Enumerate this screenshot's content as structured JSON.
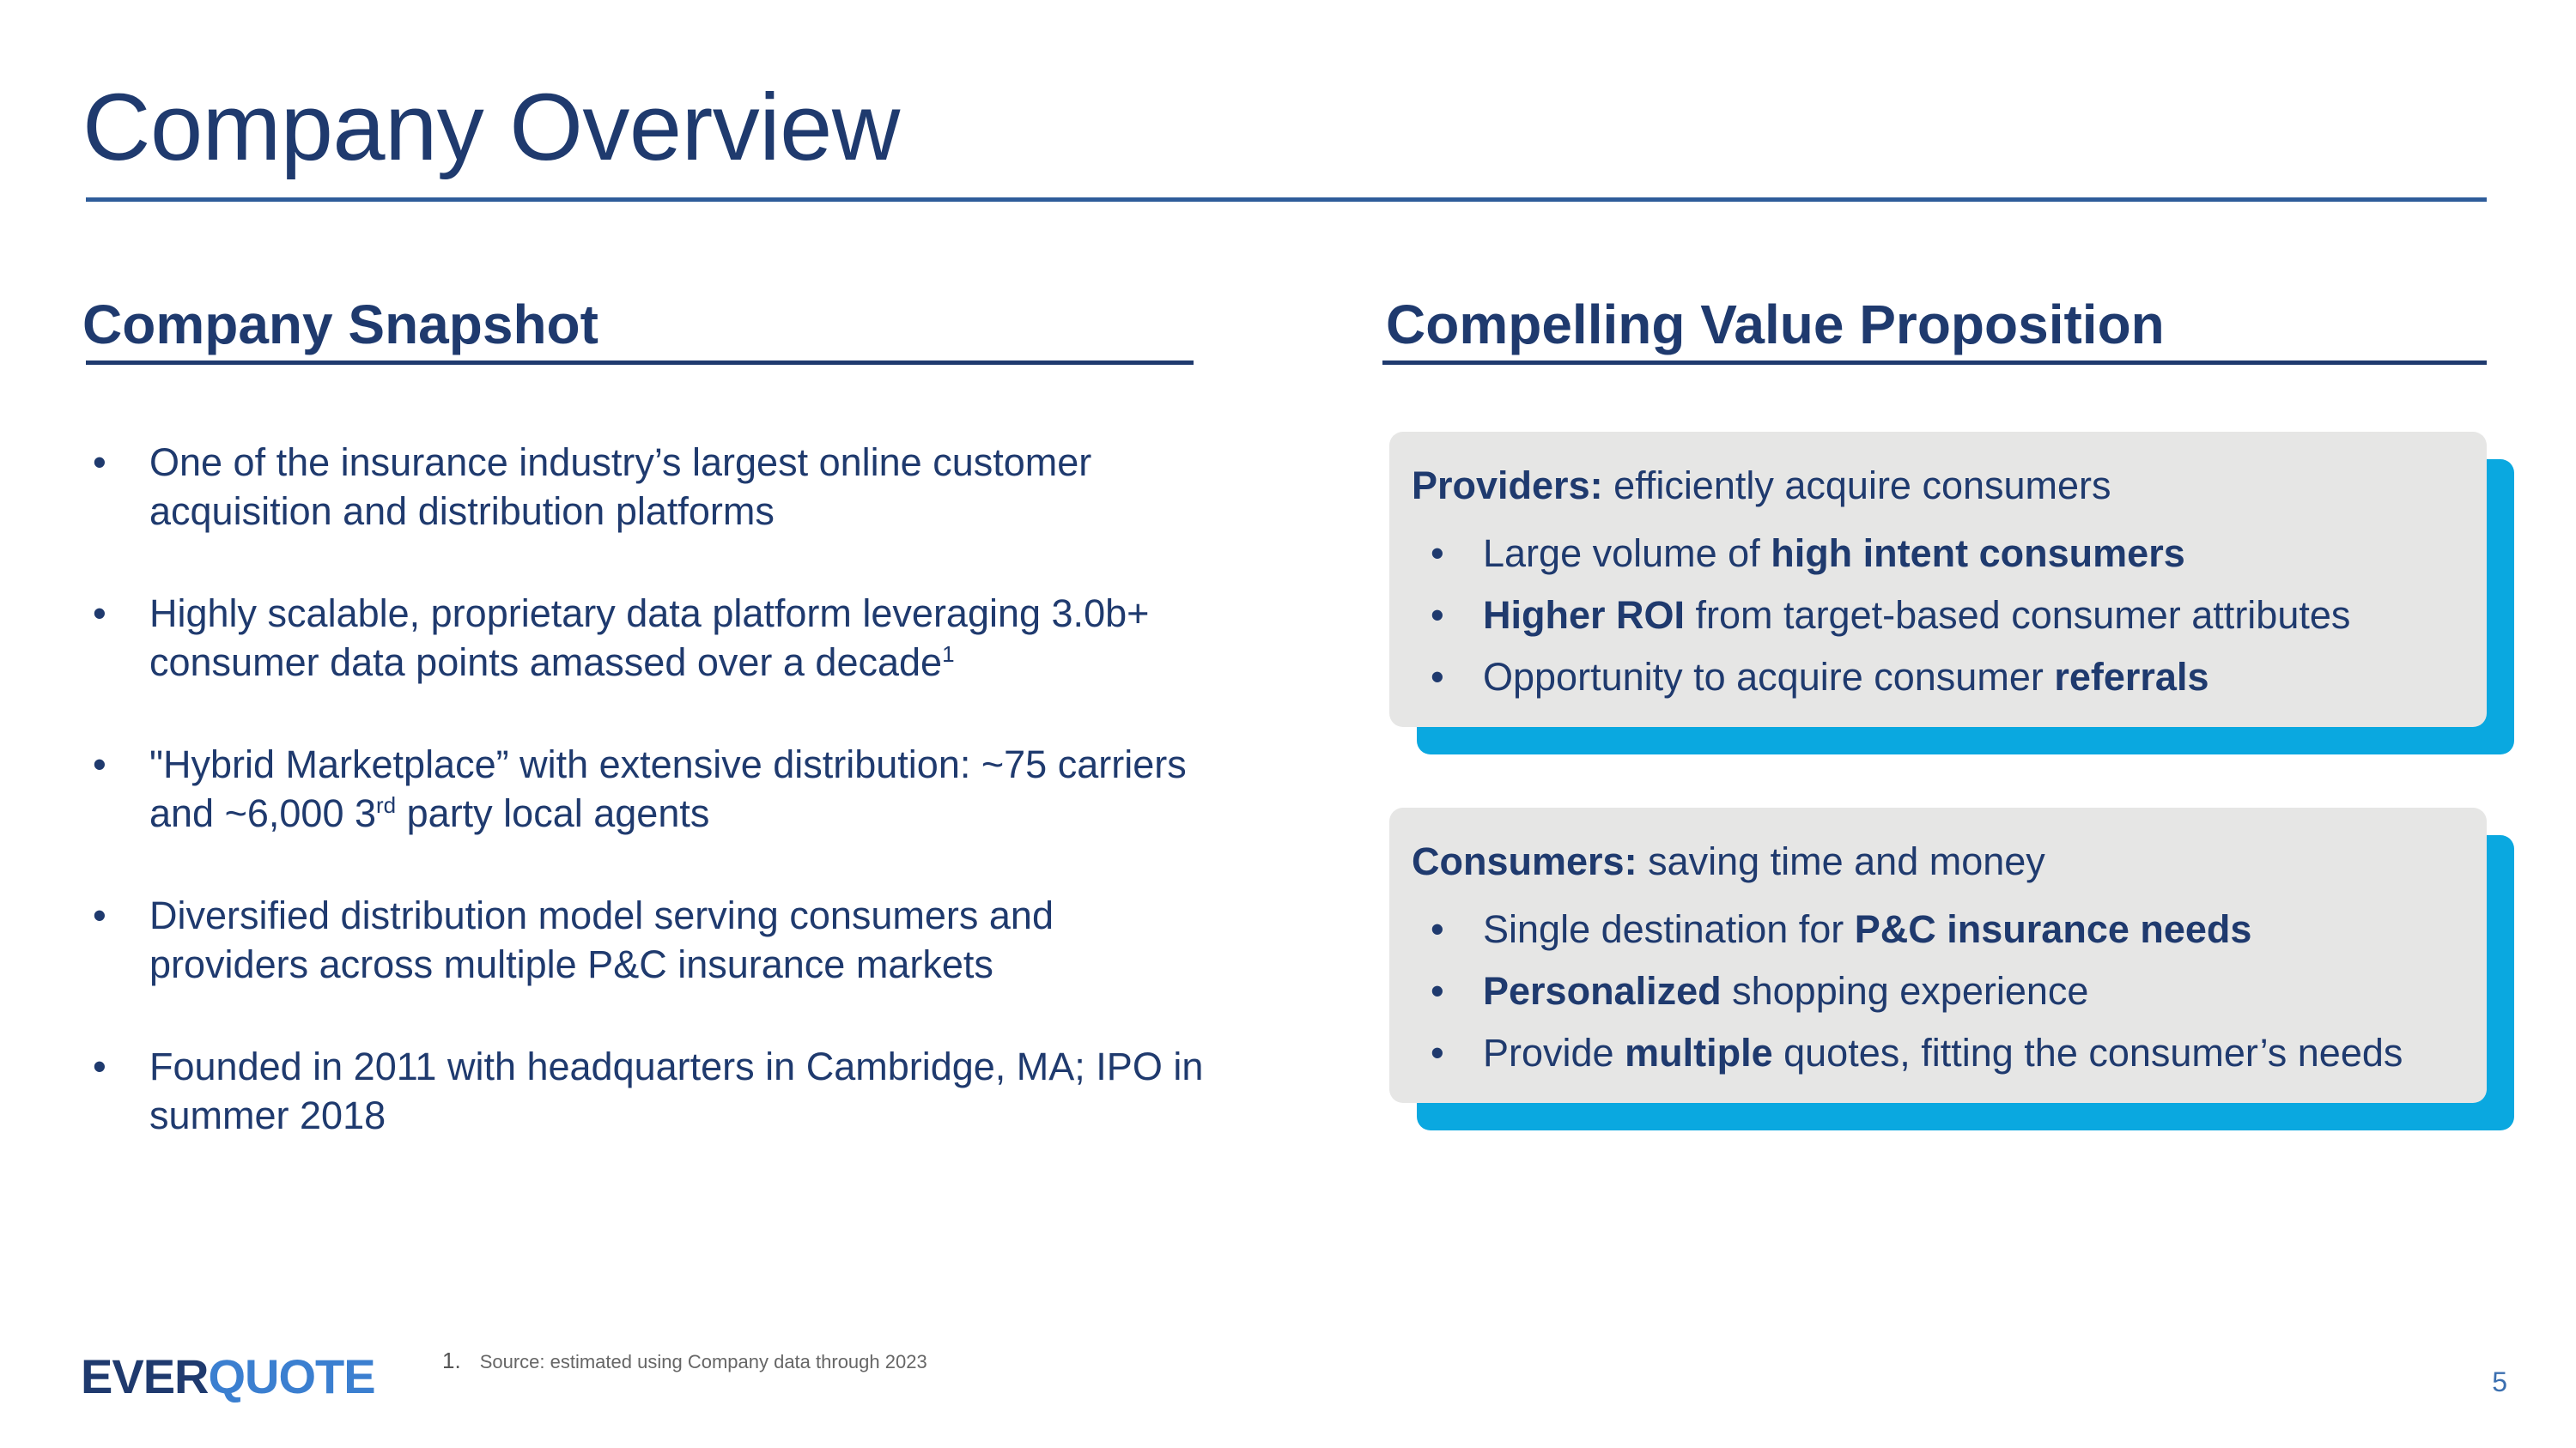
{
  "title": "Company Overview",
  "snapshot": {
    "heading": "Company Snapshot",
    "items": [
      {
        "text": "One of the insurance industry’s largest online customer acquisition and distribution platforms"
      },
      {
        "text": "Highly scalable, proprietary data platform leveraging 3.0b+ consumer data points amassed over a decade",
        "sup": "1"
      },
      {
        "pre": "\"Hybrid Marketplace” with extensive distribution: ~75 carriers and ~6,000 3",
        "sup": "rd",
        "post": " party local agents"
      },
      {
        "text": "Diversified distribution model serving consumers and providers across multiple P&C insurance markets"
      },
      {
        "text": "Founded in 2011 with headquarters in Cambridge, MA; IPO in summer 2018"
      }
    ]
  },
  "value_prop": {
    "heading": "Compelling Value Proposition",
    "cards": [
      {
        "head_bold": "Providers:",
        "head_text": " efficiently acquire consumers",
        "items": [
          {
            "pre": "Large volume of ",
            "bold": "high intent consumers",
            "post": ""
          },
          {
            "pre": "",
            "bold": "Higher ROI",
            "post": " from target-based consumer attributes"
          },
          {
            "pre": "Opportunity to acquire consumer ",
            "bold": "referrals",
            "post": ""
          }
        ]
      },
      {
        "head_bold": "Consumers:",
        "head_text": " saving time and money",
        "items": [
          {
            "pre": "Single destination for ",
            "bold": "P&C insurance needs",
            "post": ""
          },
          {
            "pre": "",
            "bold": "Personalized",
            "post": " shopping experience"
          },
          {
            "pre": "Provide ",
            "bold": "multiple",
            "post": " quotes, fitting the consumer’s needs"
          }
        ]
      }
    ]
  },
  "footer": {
    "logo_part1": "EVER",
    "logo_part2": "QUOTE",
    "footnote_number": "1.",
    "footnote_text": "Source: estimated using Company data through 2023",
    "page_number": "5"
  },
  "bullet_glyph": "•",
  "colors": {
    "navy": "#1f3a6e",
    "accent_blue": "#0aa8e0",
    "card_gray": "#e6e6e5",
    "logo_blue": "#3b7fd0"
  }
}
